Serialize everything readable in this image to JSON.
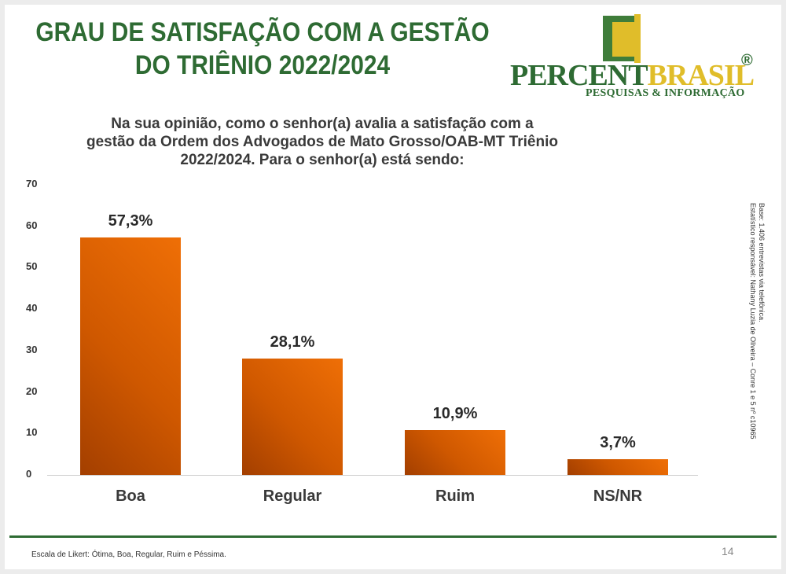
{
  "header": {
    "title_line1": "GRAU DE SATISFAÇÃO COM A GESTÃO",
    "title_line2": "DO TRIÊNIO 2022/2024"
  },
  "logo": {
    "name_part1": "PERCENT",
    "name_part2": "BRASIL",
    "registered": "®",
    "tagline": "PESQUISAS & INFORMAÇÃO"
  },
  "question": "Na sua opinião, como o senhor(a) avalia a satisfação com a gestão da Ordem dos Advogados de Mato Grosso/OAB-MT Triênio 2022/2024. Para o senhor(a) está sendo:",
  "chart_data": {
    "type": "bar",
    "categories": [
      "Boa",
      "Regular",
      "Ruim",
      "NS/NR"
    ],
    "values": [
      57.3,
      28.1,
      10.9,
      3.7
    ],
    "value_labels": [
      "57,3%",
      "28,1%",
      "10,9%",
      "3,7%"
    ],
    "yticks": [
      0,
      10,
      20,
      30,
      40,
      50,
      60,
      70
    ],
    "ylim": [
      0,
      70
    ],
    "grid": false,
    "bar_color": "#e36408"
  },
  "side_note": {
    "line1": "Base: 1.406 entrevistas via telefônica.",
    "line2": "Estatístico responsável: Nathany Luzia de Oliveira – Conre 1 e 5 nº c10965"
  },
  "footer": {
    "note": "Escala de Likert: Ótima, Boa, Regular, Ruim e Péssima.",
    "page_number": "14"
  },
  "colors": {
    "title_green": "#2e6b33",
    "logo_gold": "#e0bd2a",
    "bar_orange": "#e36408"
  }
}
